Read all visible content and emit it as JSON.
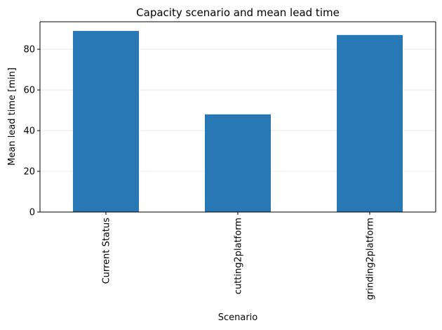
{
  "chart_data": {
    "type": "bar",
    "title": "Capacity scenario and mean lead time",
    "xlabel": "Scenario",
    "ylabel": "Mean lead time [min]",
    "categories": [
      "Current Status",
      "cutting2platform",
      "grinding2platform"
    ],
    "values": [
      89,
      48,
      87
    ],
    "ylim": [
      0,
      93.5
    ],
    "yticks": [
      0,
      20,
      40,
      60,
      80
    ],
    "grid": "horizontal",
    "bar_color": "#2878b5",
    "tick_label_rotation": "vertical"
  }
}
